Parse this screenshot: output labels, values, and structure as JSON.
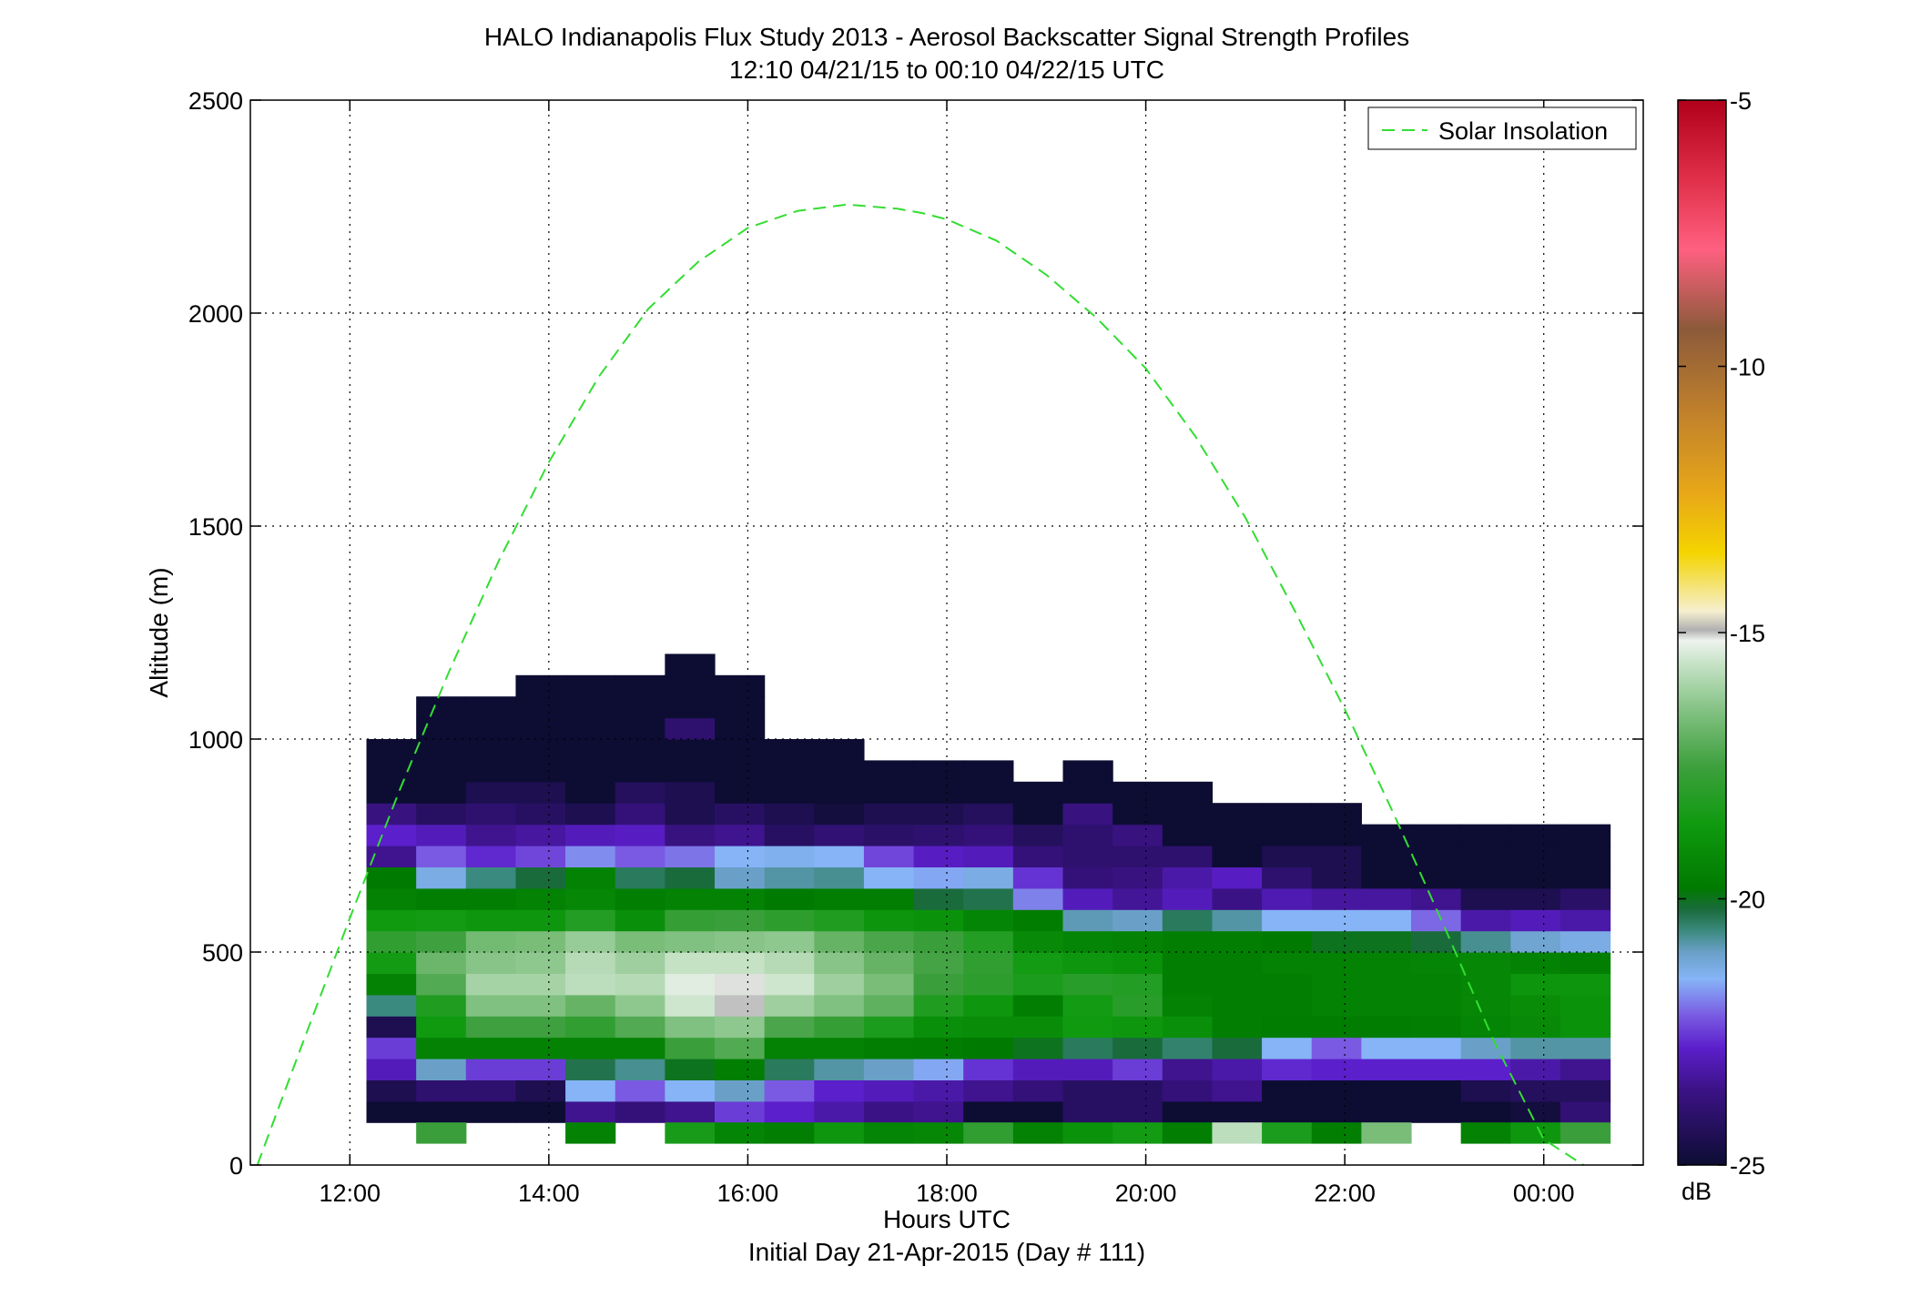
{
  "chart_data": {
    "type": "heatmap",
    "title": "HALO Indianapolis Flux Study 2013 - Aerosol Backscatter Signal Strength Profiles",
    "subtitle": "12:10 04/21/15 to 00:10 04/22/15  UTC",
    "xlabel": "Hours UTC",
    "xlabel2": "Initial Day 21-Apr-2015 (Day # 111)",
    "ylabel": "Altitude (m)",
    "xlim": [
      11.0,
      25.0
    ],
    "ylim": [
      0,
      2500
    ],
    "xticks": [
      12,
      14,
      16,
      18,
      20,
      22,
      24
    ],
    "xtick_labels": [
      "12:00",
      "14:00",
      "16:00",
      "18:00",
      "20:00",
      "22:00",
      "00:00"
    ],
    "yticks": [
      0,
      500,
      1000,
      1500,
      2000,
      2500
    ],
    "ytick_labels": [
      "0",
      "500",
      "1000",
      "1500",
      "2000",
      "2500"
    ],
    "grid": true,
    "legend": {
      "location": "top-right",
      "entries": [
        {
          "name": "Solar Insolation",
          "color": "#33dd33",
          "style": "dashed"
        }
      ]
    },
    "colorbar": {
      "label": "dB",
      "range": [
        -25,
        -5
      ],
      "ticks": [
        -5,
        -10,
        -15,
        -20,
        -25
      ],
      "tick_labels": [
        "-5",
        "-10",
        "-15",
        "-20",
        "-25"
      ],
      "colormap": [
        [
          -25.0,
          "#0d0d33"
        ],
        [
          -23.6,
          "#3b1285"
        ],
        [
          -22.8,
          "#5b1fcb"
        ],
        [
          -22.2,
          "#7a5ae2"
        ],
        [
          -21.5,
          "#86b4f7"
        ],
        [
          -21.0,
          "#6aa0c8"
        ],
        [
          -20.6,
          "#3b8a7f"
        ],
        [
          -20.2,
          "#1a6b3c"
        ],
        [
          -19.8,
          "#007a00"
        ],
        [
          -18.6,
          "#0f9a0f"
        ],
        [
          -17.5,
          "#3ea03e"
        ],
        [
          -16.5,
          "#80c080"
        ],
        [
          -15.6,
          "#c5e2c5"
        ],
        [
          -15.15,
          "#eef2ee"
        ],
        [
          -14.95,
          "#b0b0b0"
        ],
        [
          -14.6,
          "#f5efcf"
        ],
        [
          -13.5,
          "#f4d400"
        ],
        [
          -12.4,
          "#e8a818"
        ],
        [
          -11.0,
          "#c4842a"
        ],
        [
          -9.3,
          "#8c5a3a"
        ],
        [
          -7.8,
          "#ff6080"
        ],
        [
          -6.5,
          "#e0304a"
        ],
        [
          -5.0,
          "#b0001a"
        ]
      ]
    },
    "time_bins_start": 12.166667,
    "time_bin_width": 0.5,
    "altitude_bin_width": 50,
    "columns": [
      {
        "base": 100,
        "values": [
          -25,
          -24.5,
          -23,
          -22.5,
          -24.5,
          -20.6,
          -19.5,
          -18.5,
          -17.8,
          -18.6,
          -19.5,
          -19.8,
          -23.5,
          -22.8,
          -23.7,
          -25,
          -25,
          -25
        ]
      },
      {
        "base": 100,
        "values": [
          -25,
          -24,
          -21.0,
          -19.5,
          -18.6,
          -18.2,
          -17.2,
          -16.8,
          -17.5,
          -18.5,
          -19.6,
          -21.3,
          -22.2,
          -23.0,
          -24.2,
          -25,
          -25,
          -25,
          -25,
          -25
        ]
      },
      {
        "base": 100,
        "values": [
          -25,
          -24,
          -22.5,
          -19.5,
          -17.5,
          -16.5,
          -16.0,
          -16.4,
          -16.7,
          -18.7,
          -19.6,
          -20.6,
          -22.7,
          -23.5,
          -24.0,
          -24.5,
          -25,
          -25,
          -25,
          -25
        ]
      },
      {
        "base": 100,
        "values": [
          -25,
          -24.5,
          -22.5,
          -19.5,
          -17.5,
          -16.5,
          -16.0,
          -16.3,
          -16.6,
          -18.7,
          -19.5,
          -20.2,
          -22.4,
          -23.3,
          -24.2,
          -24.5,
          -25,
          -25,
          -25,
          -25,
          -25
        ]
      },
      {
        "base": 100,
        "values": [
          -23.5,
          -21.5,
          -20.3,
          -19.5,
          -17.8,
          -16.9,
          -15.7,
          -15.8,
          -16.2,
          -18.1,
          -19.3,
          -19.5,
          -21.8,
          -23.0,
          -24.5,
          -25,
          -25,
          -25,
          -25,
          -25,
          -25
        ]
      },
      {
        "base": 100,
        "values": [
          -23.8,
          -22.2,
          -20.7,
          -19.5,
          -17.2,
          -16.3,
          -15.8,
          -16.1,
          -16.6,
          -19.0,
          -19.6,
          -20.4,
          -22.2,
          -22.9,
          -23.8,
          -24.3,
          -25,
          -25,
          -25,
          -25,
          -25
        ]
      },
      {
        "base": 100,
        "values": [
          -23.5,
          -21.5,
          -20.0,
          -17.6,
          -16.5,
          -15.5,
          -15.3,
          -15.6,
          -16.5,
          -17.7,
          -19.5,
          -20.2,
          -22.0,
          -23.7,
          -24.5,
          -24.5,
          -25,
          -25,
          -24.0,
          -25,
          -25,
          -25
        ]
      },
      {
        "base": 100,
        "values": [
          -22.5,
          -21.0,
          -19.6,
          -17.2,
          -16.3,
          -15.0,
          -15.1,
          -15.6,
          -16.4,
          -17.6,
          -19.5,
          -21.0,
          -21.5,
          -23.5,
          -24.2,
          -25,
          -25,
          -25,
          -25,
          -25,
          -25
        ]
      },
      {
        "base": 100,
        "values": [
          -22.8,
          -22.2,
          -20.4,
          -19.5,
          -17.3,
          -16.1,
          -15.5,
          -15.8,
          -16.3,
          -17.9,
          -19.8,
          -20.8,
          -21.4,
          -24.2,
          -24.5,
          -25,
          -25,
          -25
        ]
      },
      {
        "base": 100,
        "values": [
          -23.2,
          -22.8,
          -20.8,
          -19.5,
          -17.7,
          -16.5,
          -16.1,
          -16.4,
          -16.9,
          -18.2,
          -19.6,
          -20.7,
          -21.5,
          -23.9,
          -24.8,
          -25,
          -25,
          -25
        ]
      },
      {
        "base": 100,
        "values": [
          -23.6,
          -23.0,
          -21.0,
          -19.6,
          -18.3,
          -17.0,
          -16.6,
          -16.9,
          -17.3,
          -18.8,
          -19.6,
          -21.5,
          -22.4,
          -24.1,
          -24.5,
          -25,
          -25
        ]
      },
      {
        "base": 100,
        "values": [
          -23.5,
          -23.2,
          -21.6,
          -19.7,
          -19.0,
          -18.2,
          -17.6,
          -17.4,
          -17.6,
          -18.9,
          -20.2,
          -21.6,
          -22.9,
          -24.0,
          -24.5,
          -25,
          -25
        ]
      },
      {
        "base": 100,
        "values": [
          -25,
          -23.5,
          -22.6,
          -19.8,
          -19.1,
          -18.7,
          -17.9,
          -17.8,
          -18.1,
          -19.4,
          -20.3,
          -21.3,
          -23.0,
          -23.8,
          -24.3,
          -25,
          -25
        ]
      },
      {
        "base": 100,
        "values": [
          -25,
          -23.8,
          -23.0,
          -20.0,
          -19.1,
          -19.6,
          -18.3,
          -18.5,
          -19.2,
          -19.7,
          -21.9,
          -22.6,
          -23.8,
          -24.3,
          -25,
          -25
        ]
      },
      {
        "base": 100,
        "values": [
          -24.2,
          -24.2,
          -23.0,
          -20.4,
          -18.6,
          -18.5,
          -18.0,
          -18.7,
          -19.4,
          -20.9,
          -23.0,
          -23.8,
          -24.0,
          -24.0,
          -23.7,
          -25,
          -25
        ]
      },
      {
        "base": 100,
        "values": [
          -24.2,
          -24.2,
          -22.5,
          -20.2,
          -18.7,
          -18.0,
          -18.1,
          -18.9,
          -19.5,
          -21.0,
          -23.4,
          -23.7,
          -24.0,
          -23.7,
          -25,
          -25
        ]
      },
      {
        "base": 100,
        "values": [
          -25,
          -23.8,
          -23.5,
          -20.5,
          -19.0,
          -19.5,
          -19.6,
          -19.6,
          -19.6,
          -20.4,
          -23.0,
          -23.2,
          -24.0,
          -25,
          -25,
          -25
        ]
      },
      {
        "base": 100,
        "values": [
          -25,
          -23.5,
          -23.2,
          -20.2,
          -19.6,
          -19.6,
          -19.6,
          -19.6,
          -19.6,
          -20.8,
          -23.6,
          -22.9,
          -25,
          -25,
          -25
        ]
      },
      {
        "base": 100,
        "values": [
          -25,
          -25,
          -22.7,
          -21.5,
          -19.7,
          -19.6,
          -19.6,
          -19.5,
          -19.8,
          -21.5,
          -23.1,
          -24.0,
          -24.5,
          -25,
          -25
        ]
      },
      {
        "base": 100,
        "values": [
          -25,
          -25,
          -22.8,
          -22.2,
          -19.7,
          -19.5,
          -19.5,
          -19.5,
          -20.0,
          -21.5,
          -23.3,
          -24.5,
          -24.5,
          -25,
          -25
        ]
      },
      {
        "base": 100,
        "values": [
          -25,
          -25,
          -22.8,
          -21.5,
          -19.7,
          -19.5,
          -19.5,
          -19.5,
          -20.0,
          -21.5,
          -23.3,
          -25,
          -25,
          -25
        ]
      },
      {
        "base": 100,
        "values": [
          -25,
          -25,
          -22.8,
          -21.5,
          -19.6,
          -19.5,
          -19.5,
          -19.4,
          -20.2,
          -22.1,
          -23.5,
          -25,
          -25,
          -25
        ]
      },
      {
        "base": 100,
        "values": [
          -25,
          -24.5,
          -22.8,
          -21.0,
          -19.4,
          -19.3,
          -19.3,
          -19.3,
          -20.7,
          -23.2,
          -24.5,
          -25,
          -25,
          -25
        ]
      },
      {
        "base": 100,
        "values": [
          -24.8,
          -24.3,
          -23.2,
          -20.8,
          -19.2,
          -19.1,
          -18.8,
          -19.5,
          -21.1,
          -23.0,
          -24.5,
          -25,
          -25,
          -25
        ]
      },
      {
        "base": 100,
        "values": [
          -23.9,
          -24.3,
          -23.5,
          -20.8,
          -18.9,
          -18.9,
          -18.8,
          -19.6,
          -21.3,
          -23.2,
          -24.1,
          -25,
          -25,
          -25
        ]
      }
    ],
    "surface_row": {
      "bottom": 50,
      "top": 100,
      "values": [
        null,
        -17.6,
        null,
        null,
        -19.5,
        null,
        -18.4,
        -19.4,
        -19.6,
        -18.7,
        -19.4,
        -19.3,
        -17.8,
        -19.5,
        -18.9,
        -18.5,
        -19.6,
        -15.7,
        -18.3,
        -19.6,
        -16.6,
        null,
        -19.5,
        -18.7,
        -17.6
      ]
    },
    "solar_insolation": {
      "x": [
        11.07,
        11.5,
        12.0,
        12.5,
        13.0,
        13.5,
        14.0,
        14.5,
        15.0,
        15.5,
        16.0,
        16.5,
        17.0,
        17.5,
        17.75,
        18.0,
        18.5,
        19.0,
        19.5,
        20.0,
        20.5,
        21.0,
        21.5,
        22.0,
        22.5,
        23.0,
        23.5,
        24.0,
        24.4
      ],
      "y": [
        0,
        270,
        580,
        880,
        1160,
        1420,
        1650,
        1850,
        2010,
        2120,
        2200,
        2240,
        2255,
        2245,
        2235,
        2220,
        2170,
        2090,
        1990,
        1870,
        1710,
        1520,
        1300,
        1070,
        820,
        560,
        290,
        60,
        0
      ]
    }
  }
}
